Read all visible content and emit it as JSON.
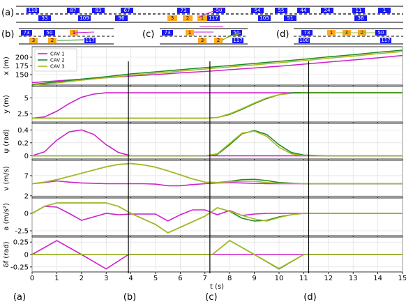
{
  "figure": {
    "snapshot_labels": [
      "(a)",
      "(b)",
      "(c)",
      "(d)"
    ],
    "x_label": "t (s)",
    "x_ticks": [
      "0",
      "1",
      "2",
      "3",
      "4",
      "5",
      "6",
      "7",
      "8",
      "9",
      "10",
      "11",
      "12",
      "13",
      "14",
      "15"
    ],
    "vertical_marker_times": [
      3.9,
      7.2,
      11.2
    ],
    "bottom_labels": [
      {
        "text": "(a)",
        "t": 0.0
      },
      {
        "text": "(b)",
        "t": 3.9
      },
      {
        "text": "(c)",
        "t": 7.2
      },
      {
        "text": "(d)",
        "t": 11.2
      }
    ],
    "colors": {
      "cav1": "#cc22cc",
      "cav2": "#228b22",
      "cav3": "#aabb22",
      "vehicle": "#1a1aee",
      "cav_box": "#ffaa22"
    }
  },
  "snapshots": {
    "a": {
      "vehicles_top": [
        "110",
        "87",
        "83",
        "67",
        "73",
        "50",
        "54",
        "55",
        "44",
        "24",
        "11",
        "1"
      ],
      "vehicles_mid": [
        "33",
        "109",
        "96",
        "117",
        "105",
        "51",
        "36"
      ],
      "cavs": [
        "3",
        "2",
        "1"
      ]
    },
    "b": {
      "vehicles": [
        "73",
        "50",
        "117"
      ],
      "cavs": [
        "1",
        "3",
        "2"
      ]
    },
    "c": {
      "vehicles": [
        "73",
        "50",
        "117"
      ],
      "cavs": [
        "1",
        "3",
        "2"
      ]
    },
    "d": {
      "vehicles": [
        "73",
        "50",
        "100",
        "117"
      ],
      "cavs": [
        "1",
        "3",
        "2"
      ]
    }
  },
  "chart_data": [
    {
      "type": "line",
      "ylabel": "x (m)",
      "ylim": [
        120,
        230
      ],
      "yticks": [
        150,
        175,
        200
      ],
      "legend": {
        "placement": "top-left",
        "entries": [
          "CAV 1",
          "CAV 2",
          "CAV 3"
        ]
      },
      "x": [
        0,
        1,
        2,
        3,
        4,
        5,
        6,
        7,
        8,
        9,
        10,
        11,
        12,
        13,
        14,
        15
      ],
      "series": [
        {
          "name": "CAV 1",
          "color": "#cc22cc",
          "values": [
            127,
            132,
            137,
            141,
            146,
            150,
            155,
            159,
            164,
            169,
            174,
            180,
            186,
            192,
            198,
            205
          ]
        },
        {
          "name": "CAV 2",
          "color": "#228b22",
          "values": [
            122,
            129,
            137,
            144,
            152,
            158,
            164,
            170,
            176,
            182,
            188,
            194,
            201,
            207,
            214,
            220
          ]
        },
        {
          "name": "CAV 3",
          "color": "#aabb22",
          "values": [
            119,
            126,
            134,
            141,
            148,
            154,
            160,
            166,
            172,
            178,
            184,
            190,
            197,
            203,
            210,
            216
          ]
        }
      ]
    },
    {
      "type": "line",
      "ylabel": "y (m)",
      "ylim": [
        1.2,
        6.8
      ],
      "yticks": [
        2.5,
        5.0
      ],
      "x": [
        0,
        0.5,
        1,
        1.5,
        2,
        2.5,
        3,
        3.5,
        4,
        5,
        6,
        7,
        7.5,
        8,
        8.5,
        9,
        9.5,
        10,
        10.5,
        11,
        11.5,
        12,
        13,
        14,
        15
      ],
      "series": [
        {
          "name": "CAV 1",
          "color": "#cc22cc",
          "values": [
            1.8,
            2.0,
            2.9,
            4.1,
            5.1,
            5.6,
            5.8,
            5.8,
            5.8,
            5.8,
            5.8,
            5.8,
            5.8,
            5.8,
            5.8,
            5.8,
            5.8,
            5.8,
            5.8,
            5.8,
            5.8,
            5.8,
            5.8,
            5.8,
            5.8
          ]
        },
        {
          "name": "CAV 2",
          "color": "#228b22",
          "values": [
            1.8,
            1.8,
            1.8,
            1.8,
            1.8,
            1.8,
            1.8,
            1.8,
            1.8,
            1.8,
            1.8,
            1.8,
            1.9,
            2.4,
            3.2,
            4.1,
            4.9,
            5.5,
            5.8,
            5.85,
            5.85,
            5.85,
            5.85,
            5.85,
            5.85
          ]
        },
        {
          "name": "CAV 3",
          "color": "#aabb22",
          "values": [
            1.8,
            1.8,
            1.8,
            1.8,
            1.8,
            1.8,
            1.8,
            1.8,
            1.8,
            1.8,
            1.8,
            1.8,
            1.9,
            2.5,
            3.3,
            4.2,
            5.0,
            5.5,
            5.7,
            5.75,
            5.75,
            5.75,
            5.75,
            5.75,
            5.75
          ]
        }
      ]
    },
    {
      "type": "line",
      "ylabel": "ψ (rad)",
      "ylim": [
        -0.05,
        0.5
      ],
      "yticks": [
        0.0,
        0.2,
        0.4
      ],
      "x": [
        0,
        0.5,
        1,
        1.5,
        2,
        2.5,
        3,
        3.5,
        4,
        5,
        6,
        7,
        7.5,
        8,
        8.5,
        9,
        9.5,
        10,
        10.5,
        11,
        12,
        13,
        14,
        15
      ],
      "series": [
        {
          "name": "CAV 1",
          "color": "#cc22cc",
          "values": [
            0.0,
            0.06,
            0.24,
            0.37,
            0.4,
            0.33,
            0.17,
            0.05,
            0.0,
            0.0,
            0.0,
            0.0,
            0.0,
            0.0,
            0.0,
            0.0,
            0.0,
            0.0,
            0.0,
            0.0,
            0.0,
            0.0,
            0.0,
            0.0
          ]
        },
        {
          "name": "CAV 2",
          "color": "#228b22",
          "values": [
            0.0,
            0.0,
            0.0,
            0.0,
            0.0,
            0.0,
            0.0,
            0.0,
            0.0,
            0.0,
            0.0,
            0.0,
            0.02,
            0.17,
            0.34,
            0.39,
            0.33,
            0.17,
            0.05,
            0.01,
            0.0,
            0.0,
            0.0,
            0.0
          ]
        },
        {
          "name": "CAV 3",
          "color": "#aabb22",
          "values": [
            0.0,
            0.0,
            0.0,
            0.0,
            0.0,
            0.0,
            0.0,
            0.0,
            0.0,
            0.0,
            0.0,
            0.0,
            0.03,
            0.19,
            0.35,
            0.38,
            0.3,
            0.13,
            0.03,
            0.0,
            0.0,
            0.0,
            0.0,
            0.0
          ]
        }
      ]
    },
    {
      "type": "line",
      "ylabel": "v (m/s)",
      "ylim": [
        1.8,
        10.8
      ],
      "yticks": [
        2,
        7
      ],
      "x": [
        0,
        0.5,
        1,
        1.5,
        2,
        2.5,
        3,
        3.5,
        4,
        4.5,
        5,
        5.5,
        6,
        6.5,
        7,
        7.5,
        8,
        8.5,
        9,
        9.5,
        10,
        11,
        12,
        13,
        14,
        15
      ],
      "series": [
        {
          "name": "CAV 1",
          "color": "#cc22cc",
          "values": [
            5.0,
            5.3,
            5.7,
            5.4,
            5.2,
            5.1,
            5.0,
            5.0,
            5.0,
            5.0,
            4.9,
            4.5,
            4.5,
            4.8,
            5.0,
            5.2,
            5.3,
            5.2,
            5.1,
            5.0,
            5.0,
            5.0,
            5.0,
            5.0,
            5.0,
            5.0
          ]
        },
        {
          "name": "CAV 2",
          "color": "#228b22",
          "values": [
            5.0,
            5.4,
            6.0,
            6.8,
            7.6,
            8.4,
            9.2,
            9.8,
            10.0,
            9.7,
            9.1,
            8.2,
            7.2,
            6.2,
            5.4,
            5.3,
            5.6,
            6.0,
            6.1,
            5.8,
            5.3,
            5.0,
            5.0,
            5.0,
            5.0,
            5.0
          ]
        },
        {
          "name": "CAV 3",
          "color": "#aabb22",
          "values": [
            5.0,
            5.4,
            6.0,
            6.8,
            7.6,
            8.4,
            9.2,
            9.8,
            10.0,
            9.7,
            9.1,
            8.2,
            7.2,
            6.2,
            5.4,
            5.3,
            5.5,
            5.6,
            5.6,
            5.3,
            5.1,
            5.0,
            5.0,
            5.0,
            5.0,
            5.0
          ]
        }
      ]
    },
    {
      "type": "line",
      "ylabel": "a (m/s²)",
      "ylim": [
        -3.2,
        2.2
      ],
      "yticks": [
        0.0,
        -2.5
      ],
      "x": [
        0,
        0.5,
        1,
        1.5,
        2,
        2.5,
        3,
        3.5,
        4,
        4.5,
        5,
        5.5,
        6,
        6.5,
        7,
        7.5,
        8,
        8.5,
        9,
        9.5,
        10,
        10.5,
        11,
        12,
        13,
        14,
        15
      ],
      "series": [
        {
          "name": "CAV 1",
          "color": "#cc22cc",
          "values": [
            0.0,
            1.0,
            0.9,
            0.0,
            -1.0,
            -0.5,
            0.0,
            -0.2,
            -0.1,
            -0.1,
            -0.1,
            -1.1,
            -0.2,
            0.5,
            0.5,
            -0.2,
            0.4,
            -0.3,
            -0.1,
            0.0,
            0.0,
            0.0,
            0.0,
            0.0,
            0.0,
            0.0,
            0.0
          ]
        },
        {
          "name": "CAV 2",
          "color": "#228b22",
          "values": [
            0.0,
            1.0,
            1.5,
            1.5,
            1.5,
            1.5,
            1.5,
            1.0,
            0.0,
            -0.8,
            -1.6,
            -2.8,
            -2.0,
            -1.2,
            -0.4,
            0.8,
            0.3,
            -0.7,
            -1.1,
            -1.0,
            -0.5,
            -0.2,
            0.0,
            0.0,
            0.0,
            0.0,
            0.0
          ]
        },
        {
          "name": "CAV 3",
          "color": "#aabb22",
          "values": [
            0.0,
            1.0,
            1.5,
            1.5,
            1.5,
            1.5,
            1.5,
            1.0,
            0.0,
            -0.8,
            -1.6,
            -2.8,
            -2.0,
            -1.2,
            -0.4,
            0.8,
            0.3,
            -0.3,
            -0.8,
            -1.1,
            -0.6,
            -0.2,
            0.0,
            0.0,
            0.0,
            0.0,
            0.0
          ]
        }
      ]
    },
    {
      "type": "line",
      "ylabel": "δf (rad)",
      "ylim": [
        -0.35,
        0.35
      ],
      "yticks": [
        0.25,
        0.0,
        -0.25
      ],
      "x": [
        0,
        1,
        2,
        3,
        3.9,
        4,
        5,
        6,
        7,
        7.3,
        8,
        9,
        10,
        11,
        12,
        13,
        14,
        15
      ],
      "series": [
        {
          "name": "CAV 1",
          "color": "#cc22cc",
          "values": [
            0.0,
            0.28,
            0.0,
            -0.29,
            0.0,
            0.0,
            0.0,
            0.0,
            0.0,
            0.0,
            0.0,
            0.0,
            0.0,
            0.0,
            0.0,
            0.0,
            0.0,
            0.0
          ]
        },
        {
          "name": "CAV 2",
          "color": "#228b22",
          "values": [
            0.0,
            0.0,
            0.0,
            0.0,
            0.0,
            0.0,
            0.0,
            0.0,
            0.0,
            0.0,
            0.28,
            0.0,
            -0.29,
            0.0,
            0.0,
            0.0,
            0.0,
            0.0
          ]
        },
        {
          "name": "CAV 3",
          "color": "#aabb22",
          "values": [
            0.0,
            0.0,
            0.0,
            0.0,
            0.0,
            0.0,
            0.0,
            0.0,
            0.0,
            0.0,
            0.28,
            0.0,
            -0.28,
            0.0,
            0.0,
            0.0,
            0.0,
            0.0
          ]
        }
      ]
    }
  ]
}
